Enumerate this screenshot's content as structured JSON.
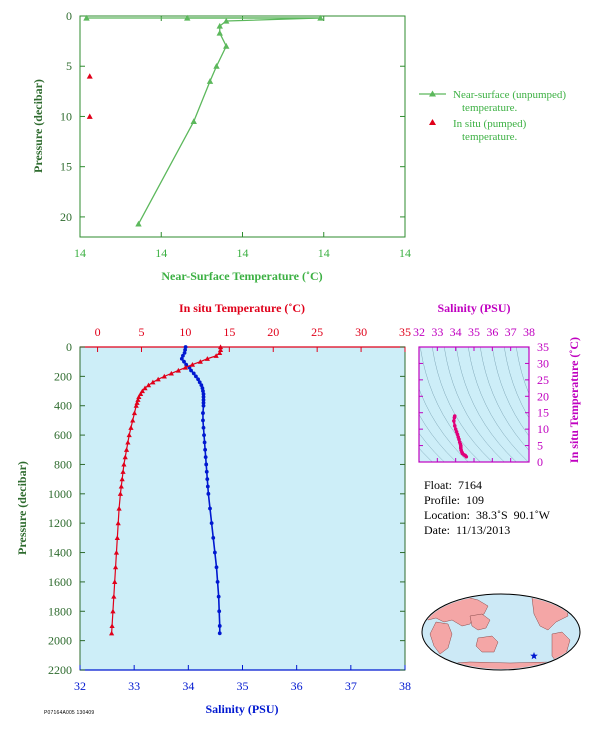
{
  "chart_data": [
    {
      "type": "line",
      "xlabel": "Near-Surface Temperature (˚C)",
      "ylabel": "Pressure (decibar)",
      "x_tick_labels": [
        "14",
        "14",
        "14",
        "14",
        "14"
      ],
      "y_ticks": [
        0,
        5,
        10,
        15,
        20
      ],
      "ylim": [
        0,
        22
      ],
      "legend_position": "right",
      "series": [
        {
          "name": "Near-surface (unpumped) temperature.",
          "color": "#5cb85c",
          "points": [
            [
              0.33,
              0.2
            ],
            [
              0.74,
              0.2
            ],
            [
              0.45,
              0.5
            ],
            [
              0.43,
              1.0
            ],
            [
              0.43,
              1.7
            ],
            [
              0.45,
              3.0
            ],
            [
              0.42,
              5.0
            ],
            [
              0.4,
              6.5
            ],
            [
              0.35,
              10.5
            ],
            [
              0.18,
              20.7
            ]
          ]
        },
        {
          "name": "In situ (pumped) temperature.",
          "color": "#e0001a",
          "points": [
            [
              0.03,
              6.0
            ],
            [
              0.03,
              10.0
            ]
          ]
        }
      ]
    },
    {
      "type": "line",
      "top_xlabel": "In situ Temperature (˚C)",
      "bottom_xlabel": "Salinity (PSU)",
      "ylabel": "Pressure (decibar)",
      "temp_ticks": [
        0,
        5,
        10,
        15,
        20,
        25,
        30,
        35
      ],
      "sal_ticks": [
        32,
        33,
        34,
        35,
        36,
        37,
        38
      ],
      "y_ticks": [
        0,
        200,
        400,
        600,
        800,
        1000,
        1200,
        1400,
        1600,
        1800,
        2000,
        2200
      ],
      "temp_lim": [
        -2,
        35
      ],
      "sal_lim": [
        32,
        38
      ],
      "ylim": [
        0,
        2200
      ],
      "temperature": {
        "name": "In situ Temperature",
        "color": "#e0001a",
        "pressure": [
          0,
          20,
          40,
          60,
          80,
          100,
          120,
          140,
          160,
          180,
          200,
          220,
          240,
          260,
          280,
          300,
          320,
          340,
          360,
          380,
          400,
          450,
          500,
          550,
          600,
          650,
          700,
          750,
          800,
          850,
          900,
          950,
          1000,
          1100,
          1200,
          1300,
          1400,
          1500,
          1600,
          1700,
          1800,
          1900,
          1950
        ],
        "values": [
          14.0,
          14.0,
          13.9,
          13.5,
          12.5,
          11.7,
          10.8,
          10.0,
          9.2,
          8.4,
          7.6,
          6.9,
          6.3,
          5.8,
          5.4,
          5.1,
          4.9,
          4.7,
          4.6,
          4.5,
          4.4,
          4.2,
          4.0,
          3.8,
          3.6,
          3.45,
          3.3,
          3.15,
          3.0,
          2.9,
          2.8,
          2.7,
          2.6,
          2.45,
          2.35,
          2.25,
          2.15,
          2.05,
          1.95,
          1.85,
          1.75,
          1.65,
          1.6
        ]
      },
      "salinity": {
        "name": "Salinity",
        "color": "#0018d0",
        "pressure": [
          0,
          20,
          40,
          60,
          80,
          100,
          120,
          140,
          160,
          180,
          200,
          220,
          240,
          260,
          280,
          300,
          320,
          340,
          360,
          380,
          400,
          450,
          500,
          550,
          600,
          650,
          700,
          750,
          800,
          850,
          900,
          950,
          1000,
          1100,
          1200,
          1300,
          1400,
          1500,
          1600,
          1700,
          1800,
          1900,
          1950
        ],
        "values": [
          33.95,
          33.94,
          33.93,
          33.9,
          33.88,
          33.92,
          33.96,
          34.02,
          34.05,
          34.1,
          34.14,
          34.18,
          34.21,
          34.24,
          34.26,
          34.27,
          34.28,
          34.28,
          34.28,
          34.28,
          34.28,
          34.27,
          34.27,
          34.28,
          34.29,
          34.3,
          34.31,
          34.32,
          34.33,
          34.34,
          34.35,
          34.36,
          34.37,
          34.4,
          34.43,
          34.46,
          34.49,
          34.52,
          34.54,
          34.56,
          34.57,
          34.58,
          34.58
        ]
      }
    },
    {
      "type": "scatter",
      "xlabel": "Salinity (PSU)",
      "ylabel": "In situ Temperature (˚C)",
      "x_ticks": [
        32,
        33,
        34,
        35,
        36,
        37,
        38
      ],
      "y_ticks": [
        0,
        5,
        10,
        15,
        20,
        25,
        30,
        35
      ],
      "xlim": [
        32,
        38
      ],
      "ylim": [
        0,
        35
      ],
      "color": "#e0007a",
      "points": [
        [
          33.95,
          14.0
        ],
        [
          33.93,
          13.5
        ],
        [
          33.9,
          12.5
        ],
        [
          33.95,
          11.0
        ],
        [
          34.0,
          10.0
        ],
        [
          34.05,
          9.2
        ],
        [
          34.1,
          8.4
        ],
        [
          34.14,
          7.6
        ],
        [
          34.18,
          6.9
        ],
        [
          34.22,
          6.0
        ],
        [
          34.26,
          5.4
        ],
        [
          34.28,
          4.9
        ],
        [
          34.28,
          4.5
        ],
        [
          34.28,
          4.2
        ],
        [
          34.3,
          3.6
        ],
        [
          34.34,
          3.0
        ],
        [
          34.37,
          2.6
        ],
        [
          34.45,
          2.2
        ],
        [
          34.52,
          2.0
        ],
        [
          34.58,
          1.6
        ]
      ]
    }
  ],
  "info": {
    "float": "Float:  7164",
    "profile": "Profile:  109",
    "location": "Location:  38.3˚S  90.1˚W",
    "date": "Date:  11/13/2013"
  },
  "footer_code": "P07164A005 130409",
  "map": {
    "marker": "float-location",
    "marker_color": "#0018d0",
    "land_color": "#f4a6a6",
    "ocean_color": "#cce9f6"
  }
}
